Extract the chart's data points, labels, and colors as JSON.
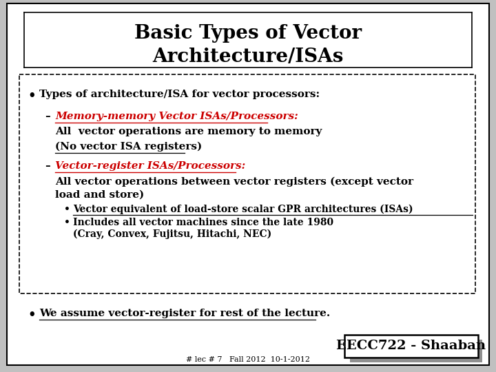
{
  "title_line1": "Basic Types of Vector",
  "title_line2": "Architecture/ISAs",
  "bullet1": "Types of architecture/ISA for vector processors:",
  "sub1_label": "Memory-memory Vector ISAs/Processors:",
  "sub1_text1": "All  vector operations are memory to memory",
  "sub1_text2": "(No vector ISA registers)",
  "sub2_label": "Vector-register ISAs/Processors:",
  "sub2_text1": "All vector operations between vector registers (except vector",
  "sub2_text2": "load and store)",
  "sub2_bullet1": "Vector equivalent of load-store scalar GPR architectures (ISAs)",
  "sub2_bullet2": "Includes all vector machines since the late 1980",
  "sub2_bullet2b": "(Cray, Convex, Fujitsu, Hitachi, NEC)",
  "bullet2": "We assume vector-register for rest of the lecture.",
  "footer_left": "# lec # 7   Fall 2012  10-1-2012",
  "footer_right": "EECC722 - Shaaban",
  "red_color": "#cc0000",
  "black_color": "#000000",
  "gray_color": "#808080"
}
